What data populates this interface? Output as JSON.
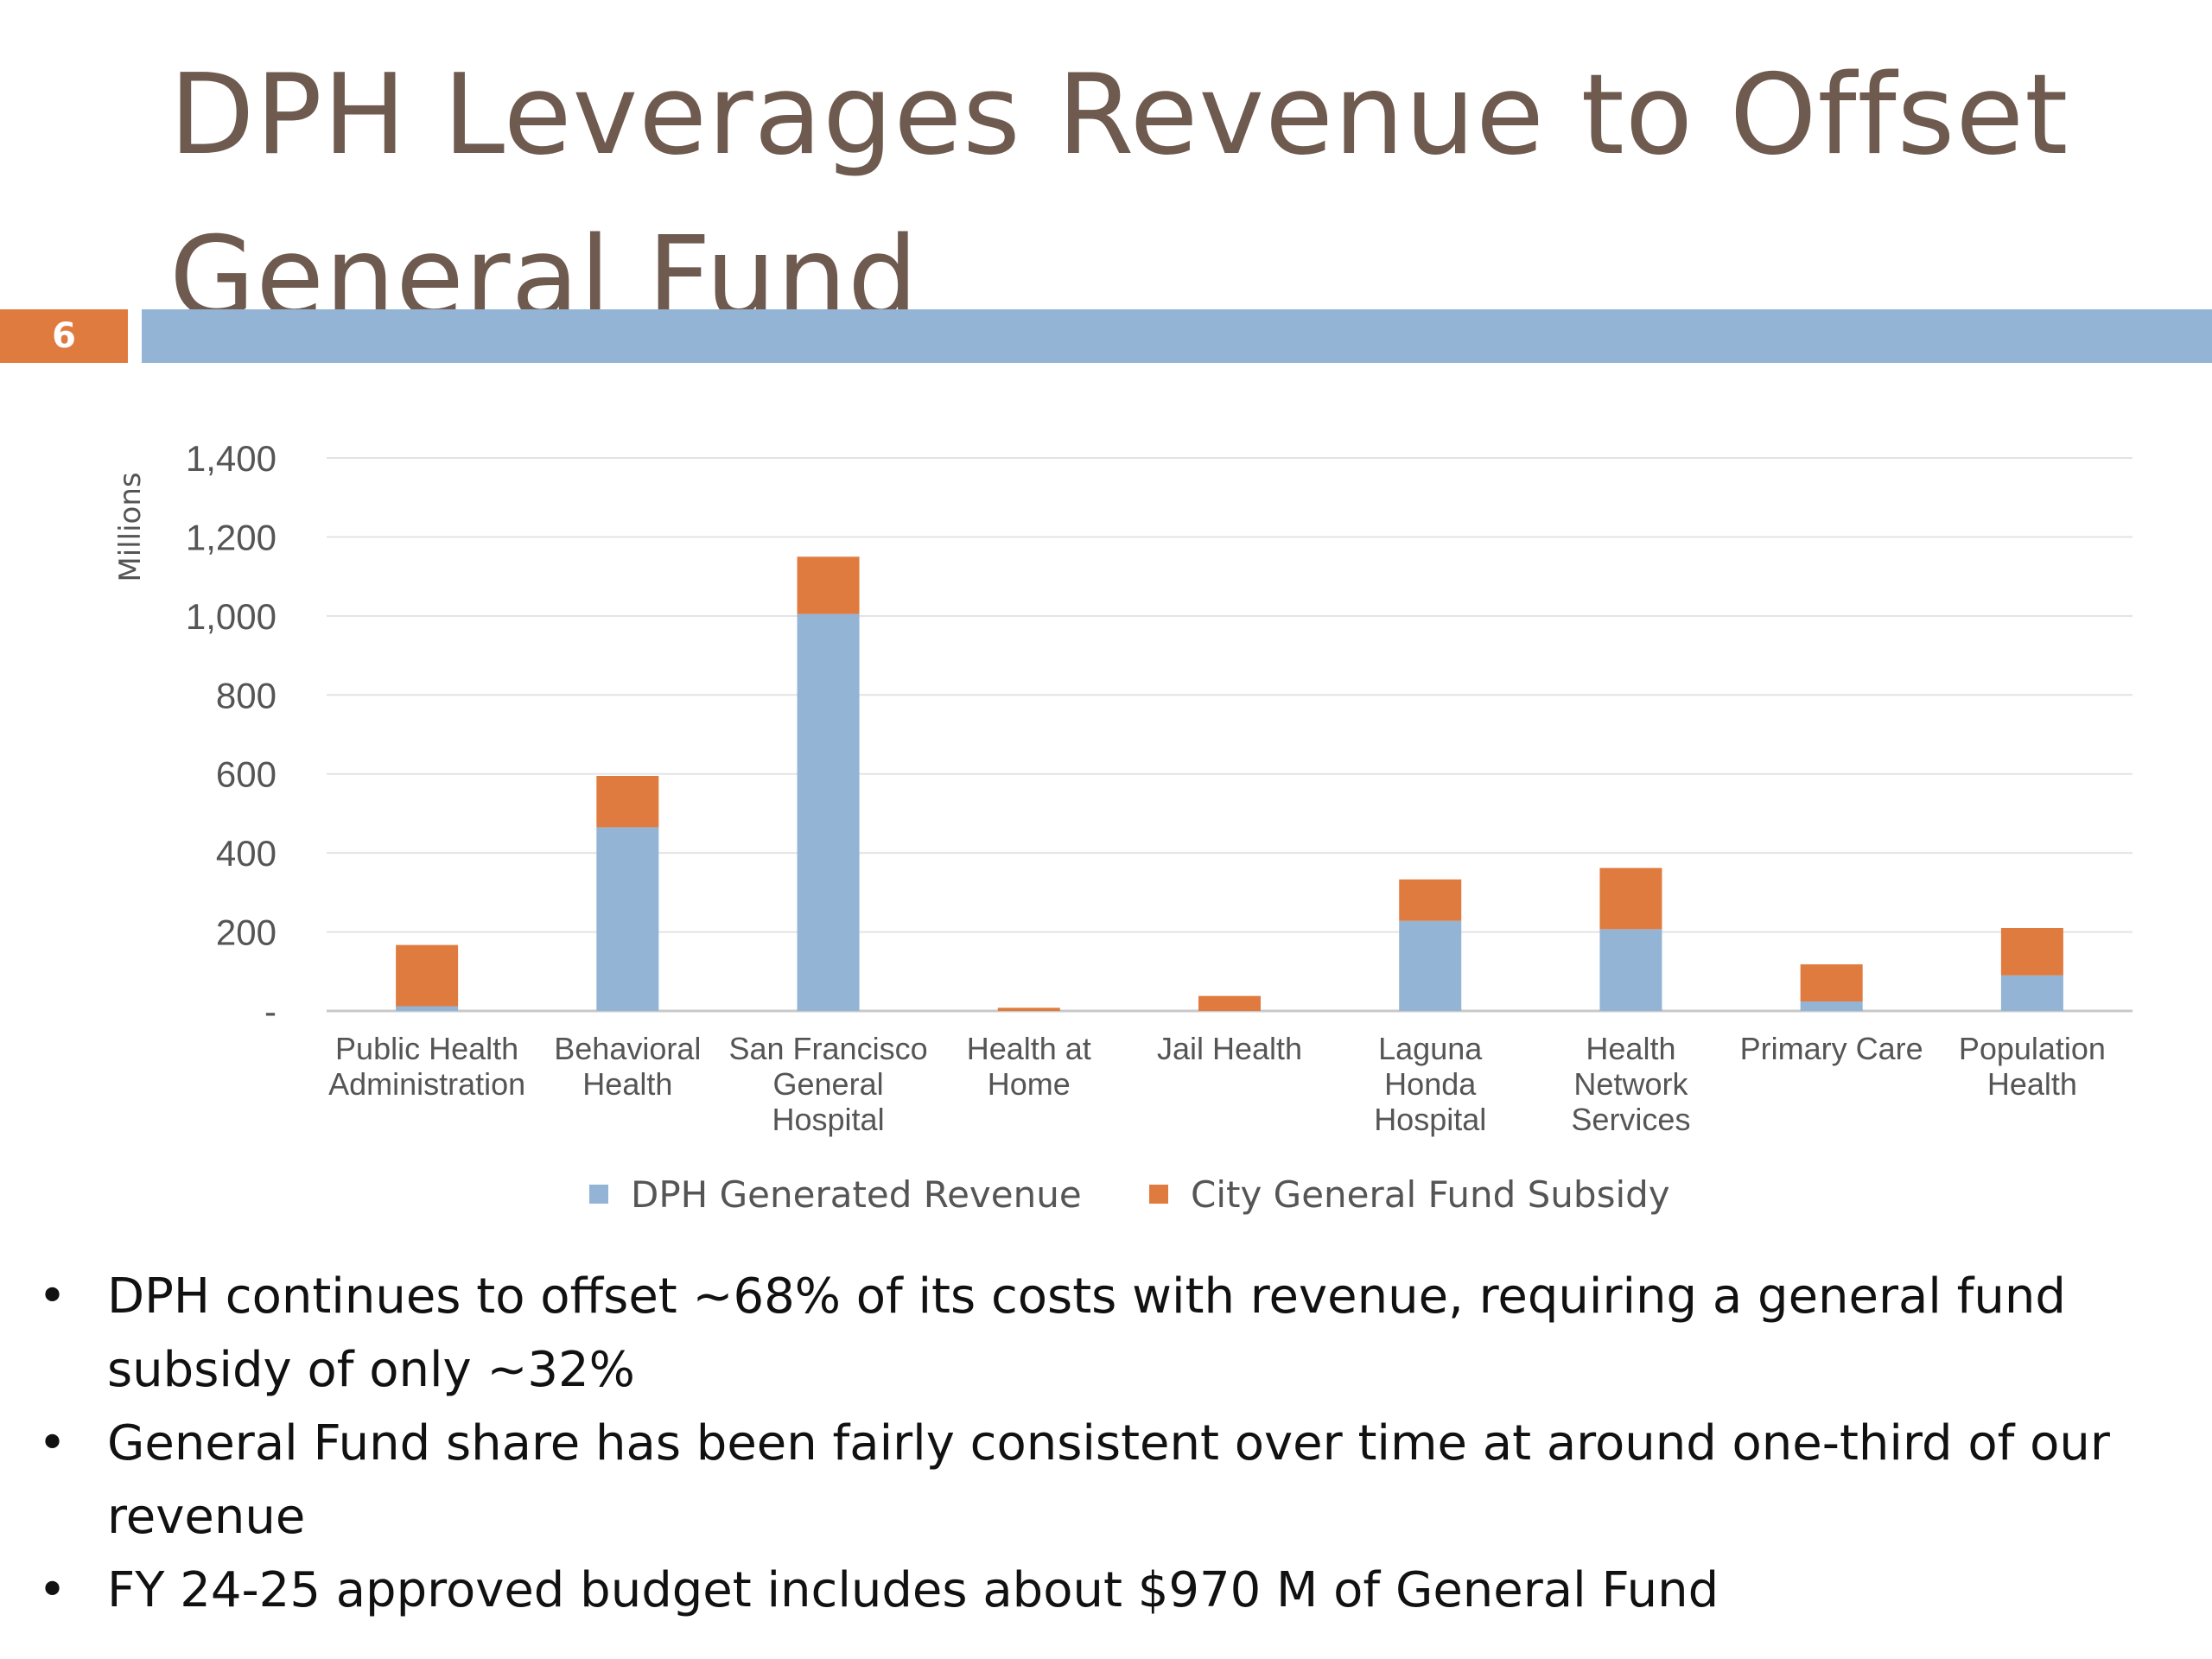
{
  "slide": {
    "title": "DPH Leverages Revenue to Offset General Fund",
    "number": "6"
  },
  "colors": {
    "revenue": "#93b4d4",
    "subsidy": "#e07b3f",
    "title": "#6e5a4e",
    "rule": "#93b4d4"
  },
  "chart_data": {
    "type": "bar",
    "stacked": true,
    "ylabel": "Millions",
    "ylim": [
      0,
      1400
    ],
    "yticks": [
      0,
      200,
      400,
      600,
      800,
      1000,
      1200,
      1400
    ],
    "ytick_labels": [
      "-",
      "200",
      "400",
      "600",
      "800",
      "1,000",
      "1,200",
      "1,400"
    ],
    "grid": true,
    "legend_position": "bottom",
    "categories": [
      [
        "Public Health",
        "Administration"
      ],
      [
        "Behavioral",
        "Health"
      ],
      [
        "San Francisco",
        "General",
        "Hospital"
      ],
      [
        "Health at",
        "Home"
      ],
      [
        "Jail Health"
      ],
      [
        "Laguna",
        "Honda",
        "Hospital"
      ],
      [
        "Health",
        "Network",
        "Services"
      ],
      [
        "Primary Care"
      ],
      [
        "Population",
        "Health"
      ]
    ],
    "series": [
      {
        "name": "DPH Generated Revenue",
        "values": [
          12,
          465,
          1005,
          0,
          0,
          228,
          207,
          24,
          90
        ]
      },
      {
        "name": "City General Fund Subsidy",
        "values": [
          155,
          130,
          145,
          8,
          38,
          105,
          155,
          94,
          120
        ]
      }
    ]
  },
  "bullets": [
    "DPH continues to offset ~68% of its costs with revenue, requiring a general fund subsidy of only ~32%",
    "General Fund share has been fairly consistent over time at around one-third of our revenue",
    "FY 24-25 approved budget includes about $970 M of General Fund"
  ]
}
